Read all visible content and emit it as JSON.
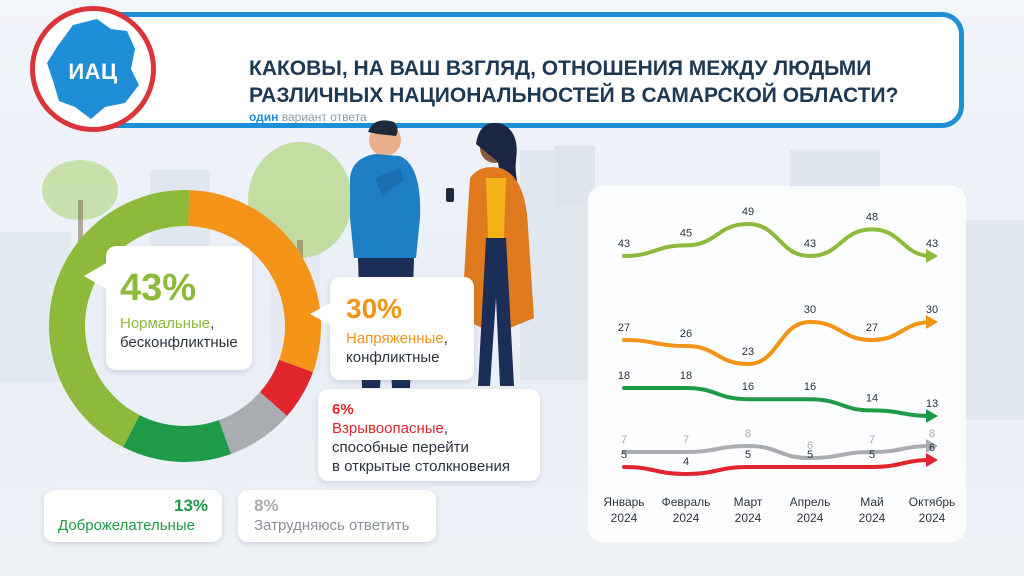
{
  "header": {
    "logo_text": "ИАЦ",
    "title_line1": "КАКОВЫ, НА ВАШ ВЗГЛЯД, ОТНОШЕНИЯ МЕЖДУ ЛЮДЬМИ",
    "title_line2": "РАЗЛИЧНЫХ НАЦИОНАЛЬНОСТЕЙ В САМАРСКОЙ ОБЛАСТИ?",
    "subtitle_bold": "один",
    "subtitle_rest": "вариант ответа"
  },
  "donut": {
    "normal": {
      "pct": "43%",
      "label": "Нормальные",
      "label_rest": ",",
      "label_line2": "бесконфликтные"
    },
    "tense": {
      "pct": "30%",
      "label": "Напряженные",
      "label_rest": ",",
      "label_line2": "конфликтные"
    },
    "explosive": {
      "pct": "6%",
      "label": "Взрывоопасные",
      "label_rest": ",",
      "label_line2": "способные перейти",
      "label_line3": "в открытые столкновения"
    },
    "friendly": {
      "pct": "13%",
      "label": "Доброжелательные"
    },
    "undecided": {
      "pct": "8%",
      "label": "Затрудняюсь ответить"
    }
  },
  "colors": {
    "normal": "#8dba3a",
    "tense": "#f39318",
    "explosive": "#e0262c",
    "friendly": "#1f9a48",
    "undecided": "#a9adb2",
    "accent": "#1e8fd6"
  },
  "chart_data": [
    {
      "type": "pie",
      "title": "КАКОВЫ, НА ВАШ ВЗГЛЯД, ОТНОШЕНИЯ МЕЖДУ ЛЮДЬМИ РАЗЛИЧНЫХ НАЦИОНАЛЬНОСТЕЙ В САМАРСКОЙ ОБЛАСТИ?",
      "categories": [
        "Нормальные, бесконфликтные",
        "Напряженные, конфликтные",
        "Взрывоопасные, способные перейти в открытые столкновения",
        "Затрудняюсь ответить",
        "Доброжелательные"
      ],
      "values": [
        43,
        30,
        6,
        8,
        13
      ],
      "donut": true
    },
    {
      "type": "line",
      "categories": [
        "Январь 2024",
        "Февраль 2024",
        "Март 2024",
        "Апрель 2024",
        "Май 2024",
        "Октябрь 2024"
      ],
      "tick_line1": [
        "Январь",
        "Февраль",
        "Март",
        "Апрель",
        "Май",
        "Октябрь"
      ],
      "tick_line2": [
        "2024",
        "2024",
        "2024",
        "2024",
        "2024",
        "2024"
      ],
      "series": [
        {
          "name": "Нормальные, бесконфликтные",
          "color": "#8dba3a",
          "values": [
            43,
            45,
            49,
            43,
            48,
            43
          ]
        },
        {
          "name": "Напряженные, конфликтные",
          "color": "#f39318",
          "values": [
            27,
            26,
            23,
            30,
            27,
            30
          ]
        },
        {
          "name": "Доброжелательные",
          "color": "#1f9a48",
          "values": [
            18,
            18,
            16,
            16,
            14,
            13
          ]
        },
        {
          "name": "Затрудняюсь ответить",
          "color": "#a9adb2",
          "values": [
            7,
            7,
            8,
            6,
            7,
            8
          ]
        },
        {
          "name": "Взрывоопасные",
          "color": "#e0262c",
          "values": [
            5,
            4,
            5,
            5,
            5,
            6
          ]
        }
      ]
    }
  ]
}
